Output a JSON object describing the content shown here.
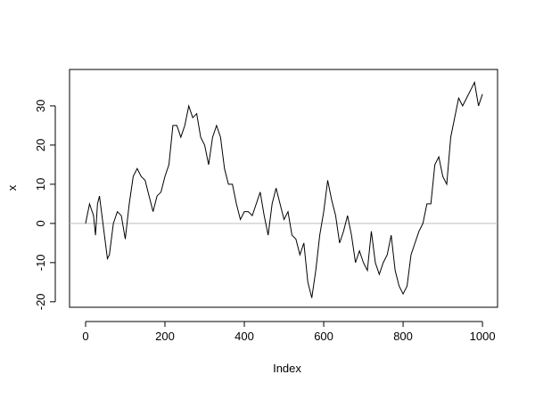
{
  "chart_data": {
    "type": "line",
    "xlabel": "Index",
    "ylabel": "x",
    "x": [
      0,
      10,
      20,
      25,
      30,
      35,
      40,
      50,
      55,
      60,
      70,
      80,
      90,
      100,
      110,
      120,
      130,
      140,
      150,
      160,
      170,
      180,
      190,
      200,
      210,
      220,
      230,
      240,
      250,
      260,
      270,
      280,
      290,
      300,
      310,
      320,
      330,
      340,
      350,
      360,
      370,
      380,
      390,
      400,
      410,
      420,
      430,
      440,
      450,
      460,
      470,
      480,
      490,
      500,
      510,
      520,
      530,
      540,
      550,
      560,
      570,
      580,
      590,
      600,
      610,
      620,
      630,
      640,
      650,
      660,
      670,
      680,
      690,
      700,
      710,
      720,
      730,
      740,
      750,
      760,
      770,
      780,
      790,
      800,
      810,
      820,
      830,
      840,
      850,
      860,
      870,
      880,
      890,
      900,
      910,
      920,
      930,
      940,
      950,
      960,
      970,
      980,
      990,
      1000
    ],
    "series": [
      {
        "color": "#000000",
        "values": [
          0,
          5,
          2,
          -3,
          5,
          7,
          3,
          -5,
          -9,
          -8,
          0,
          3,
          2,
          -4,
          5,
          12,
          14,
          12,
          11,
          7,
          3,
          7,
          8,
          12,
          15,
          25,
          25,
          22,
          25,
          30,
          27,
          28,
          22,
          20,
          15,
          22,
          25,
          22,
          14,
          10,
          10,
          5,
          1,
          3,
          3,
          2,
          5,
          8,
          2,
          -3,
          5,
          9,
          5,
          1,
          3,
          -3,
          -4,
          -8,
          -5,
          -15,
          -19,
          -12,
          -3,
          3,
          11,
          6,
          2,
          -5,
          -2,
          2,
          -3,
          -10,
          -7,
          -10,
          -12,
          -2,
          -10,
          -13,
          -10,
          -8,
          -3,
          -12,
          -16,
          -18,
          -16,
          -8,
          -5,
          -2,
          0,
          5,
          5,
          15,
          17,
          12,
          10,
          22,
          27,
          32,
          30,
          32,
          34,
          36,
          30,
          33
        ]
      }
    ],
    "hline": 0,
    "hline_color": "#bebebe",
    "xlim": [
      -40.4,
      1038
    ],
    "ylim": [
      -21.4,
      39.3
    ],
    "xticks": [
      0,
      200,
      400,
      600,
      800,
      1000
    ],
    "yticks": [
      -20,
      -10,
      0,
      10,
      20,
      30
    ]
  }
}
